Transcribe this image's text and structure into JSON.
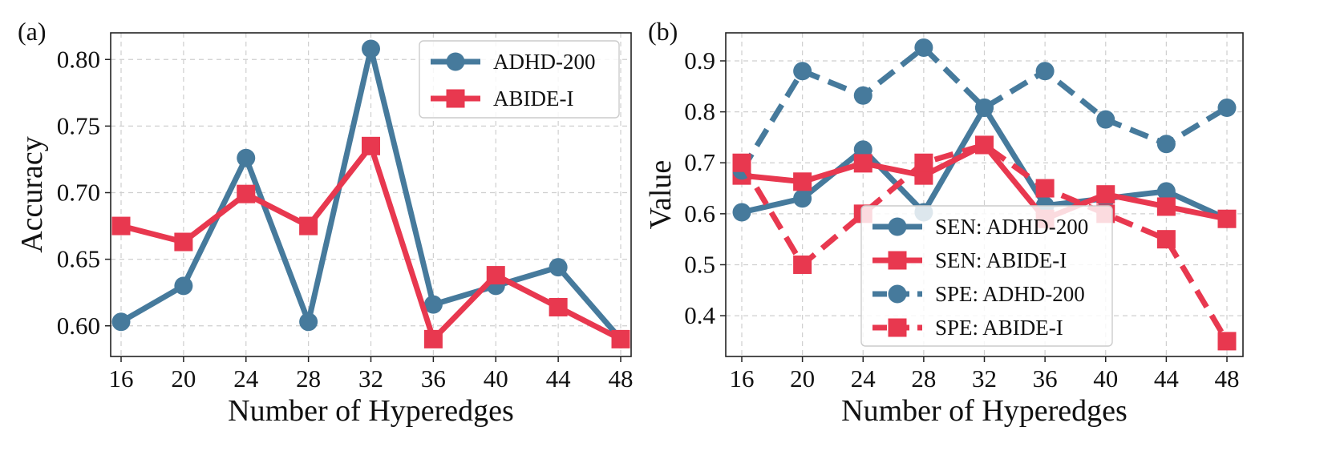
{
  "colors": {
    "ADHD": "#467a9c",
    "ABIDE": "#e8384f"
  },
  "chart_data": [
    {
      "type": "line",
      "panel_label": "(a)",
      "xlabel": "Number of Hyperedges",
      "ylabel": "Accuracy",
      "x": [
        16,
        20,
        24,
        28,
        32,
        36,
        40,
        44,
        48
      ],
      "xticks": [
        "16",
        "20",
        "24",
        "28",
        "32",
        "36",
        "40",
        "44",
        "48"
      ],
      "yticks": [
        "0.60",
        "0.65",
        "0.70",
        "0.75",
        "0.80"
      ],
      "ylim": [
        0.577,
        0.82
      ],
      "grid": true,
      "legend_position": "top-right",
      "series": [
        {
          "name": "ADHD-200",
          "color": "#467a9c",
          "marker": "circle",
          "style": "solid",
          "values": [
            0.603,
            0.63,
            0.726,
            0.603,
            0.808,
            0.616,
            0.63,
            0.644,
            0.59
          ]
        },
        {
          "name": "ABIDE-I",
          "color": "#e8384f",
          "marker": "square",
          "style": "solid",
          "values": [
            0.675,
            0.663,
            0.699,
            0.675,
            0.735,
            0.59,
            0.638,
            0.614,
            0.59
          ]
        }
      ]
    },
    {
      "type": "line",
      "panel_label": "(b)",
      "xlabel": "Number of Hyperedges",
      "ylabel": "Value",
      "x": [
        16,
        20,
        24,
        28,
        32,
        36,
        40,
        44,
        48
      ],
      "xticks": [
        "16",
        "20",
        "24",
        "28",
        "32",
        "36",
        "40",
        "44",
        "48"
      ],
      "yticks": [
        "0.4",
        "0.5",
        "0.6",
        "0.7",
        "0.8",
        "0.9"
      ],
      "ylim": [
        0.32,
        0.955
      ],
      "grid": true,
      "legend_position": "lower-center",
      "series": [
        {
          "name": "SEN: ADHD-200",
          "color": "#467a9c",
          "marker": "circle",
          "style": "solid",
          "values": [
            0.603,
            0.63,
            0.726,
            0.603,
            0.808,
            0.616,
            0.63,
            0.644,
            0.59
          ]
        },
        {
          "name": "SEN: ABIDE-I",
          "color": "#e8384f",
          "marker": "square",
          "style": "solid",
          "values": [
            0.675,
            0.663,
            0.699,
            0.675,
            0.735,
            0.59,
            0.638,
            0.614,
            0.59
          ]
        },
        {
          "name": "SPE: ADHD-200",
          "color": "#467a9c",
          "marker": "circle",
          "style": "dashed",
          "values": [
            0.685,
            0.88,
            0.832,
            0.926,
            0.808,
            0.88,
            0.785,
            0.737,
            0.808
          ]
        },
        {
          "name": "SPE: ABIDE-I",
          "color": "#e8384f",
          "marker": "square",
          "style": "dashed",
          "values": [
            0.7,
            0.5,
            0.6,
            0.7,
            0.735,
            0.65,
            0.6,
            0.55,
            0.35
          ]
        }
      ]
    }
  ]
}
